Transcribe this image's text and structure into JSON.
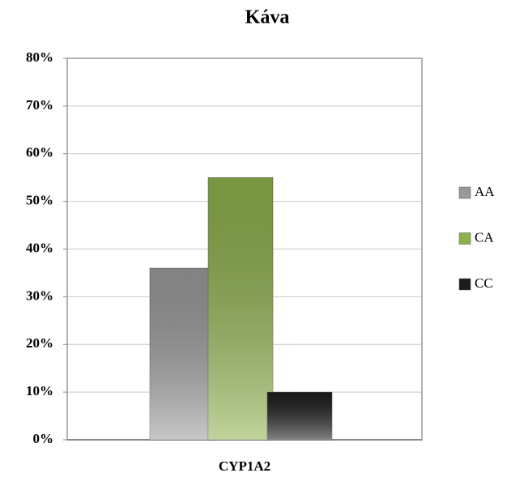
{
  "chart_data": {
    "type": "bar",
    "title": "Káva",
    "categories": [
      "CYP1A2"
    ],
    "series": [
      {
        "name": "AA",
        "color": "#9a9a9a",
        "values": [
          36
        ]
      },
      {
        "name": "CA",
        "color": "#8db04b",
        "values": [
          55
        ]
      },
      {
        "name": "CC",
        "color": "#1c1c1c",
        "values": [
          10
        ]
      }
    ],
    "ylim": [
      0,
      80
    ],
    "yticks": [
      {
        "value": 0,
        "label": "0%"
      },
      {
        "value": 10,
        "label": "10%"
      },
      {
        "value": 20,
        "label": "20%"
      },
      {
        "value": 30,
        "label": "30%"
      },
      {
        "value": 40,
        "label": "40%"
      },
      {
        "value": 50,
        "label": "50%"
      },
      {
        "value": 60,
        "label": "60%"
      },
      {
        "value": 70,
        "label": "70%"
      },
      {
        "value": 80,
        "label": "80%"
      }
    ],
    "grid": true,
    "legend": "right"
  }
}
